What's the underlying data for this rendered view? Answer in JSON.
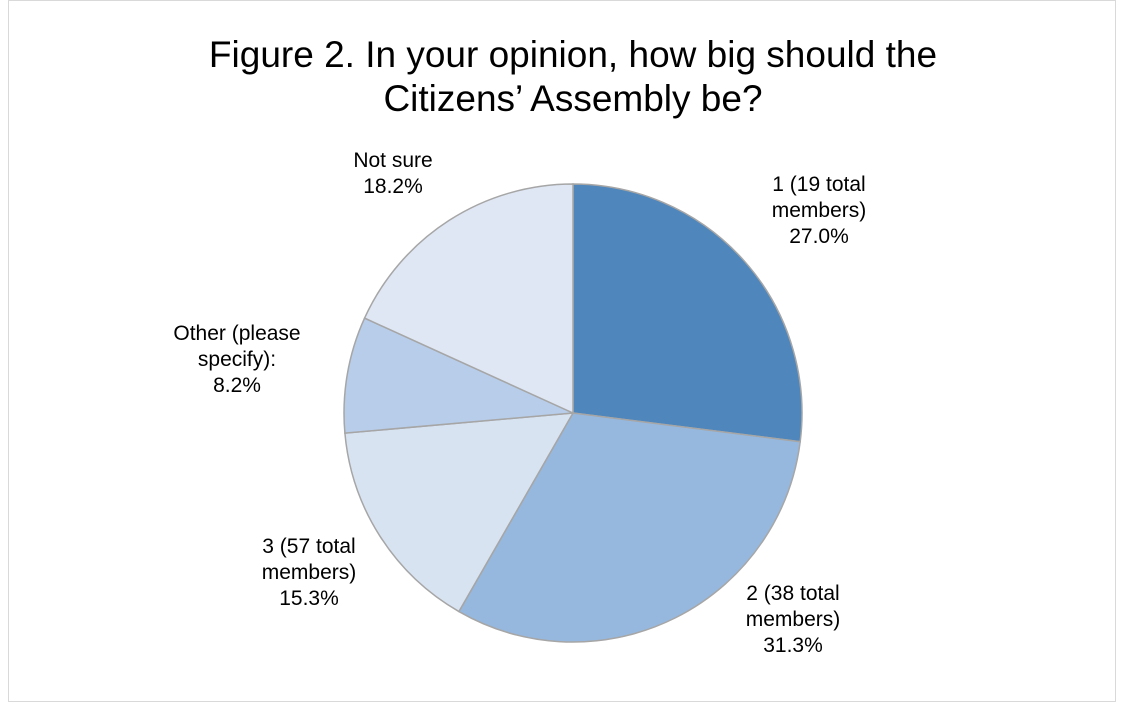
{
  "chart_data": {
    "type": "pie",
    "title_lines": [
      "Figure 2. In your opinion, how big should the",
      "Citizens’ Assembly be?"
    ],
    "slices": [
      {
        "label_lines": [
          "1 (19 total",
          "members)"
        ],
        "value": 27.0,
        "value_label": "27.0%",
        "color": "#4f86bb"
      },
      {
        "label_lines": [
          "2 (38 total",
          "members)"
        ],
        "value": 31.3,
        "value_label": "31.3%",
        "color": "#96b8de"
      },
      {
        "label_lines": [
          "3 (57 total",
          "members)"
        ],
        "value": 15.3,
        "value_label": "15.3%",
        "color": "#d8e3f2"
      },
      {
        "label_lines": [
          "Other (please",
          "specify):"
        ],
        "value": 8.2,
        "value_label": "8.2%",
        "color": "#b7cde9"
      },
      {
        "label_lines": [
          "Not sure"
        ],
        "value": 18.2,
        "value_label": "18.2%",
        "color": "#dfe7f4"
      }
    ],
    "start": "12 o'clock",
    "direction": "clockwise",
    "legend": "none",
    "slice_border_color": "#a6a6a6"
  }
}
